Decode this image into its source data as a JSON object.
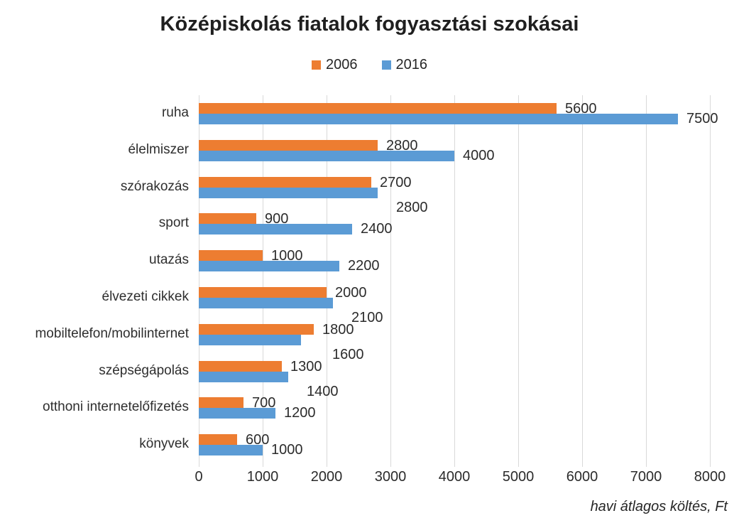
{
  "chart_data": {
    "type": "bar",
    "orientation": "horizontal",
    "title": "Középiskolás fiatalok fogyasztási szokásai",
    "categories": [
      "ruha",
      "élelmiszer",
      "szórakozás",
      "sport",
      "utazás",
      "élvezeti cikkek",
      "mobiltelefon/mobilinternet",
      "szépségápolás",
      "otthoni internetelőfizetés",
      "könyvek"
    ],
    "series": [
      {
        "name": "2006",
        "color": "#ED7D31",
        "values": [
          5600,
          2800,
          2700,
          900,
          1000,
          2000,
          1800,
          1300,
          700,
          600
        ]
      },
      {
        "name": "2016",
        "color": "#5B9BD5",
        "values": [
          7500,
          4000,
          2800,
          2400,
          2200,
          2100,
          1600,
          1400,
          1200,
          1000
        ]
      }
    ],
    "xlim": [
      0,
      8000
    ],
    "x_ticks": [
      0,
      1000,
      2000,
      3000,
      4000,
      5000,
      6000,
      7000,
      8000
    ],
    "grid": "vertical",
    "legend_position": "top",
    "data_labels": true,
    "footnote": "havi átlagos költés, Ft"
  },
  "colors": {
    "background": "#FFFFFF",
    "gridline": "#D9D9D9",
    "text": "#2B2B2B",
    "title": "#1F1F1F"
  }
}
